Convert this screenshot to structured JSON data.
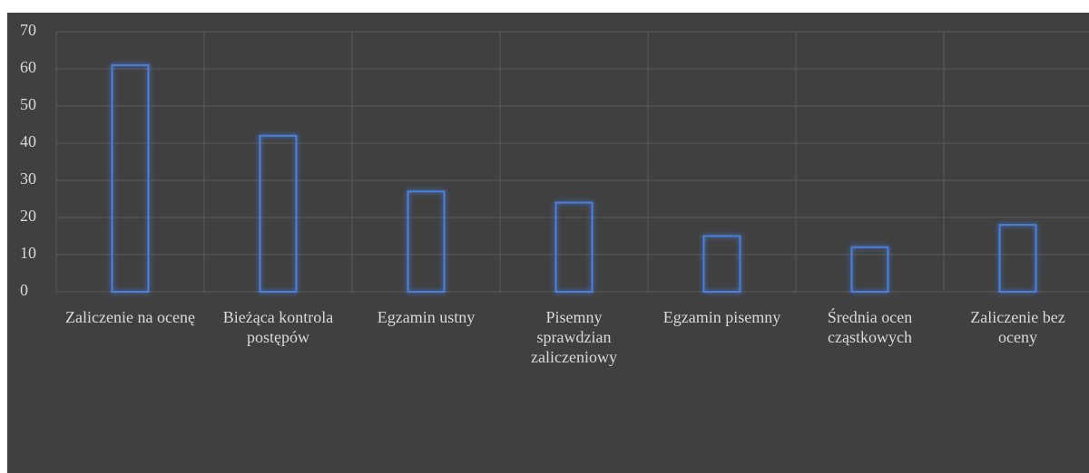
{
  "chart_data": {
    "type": "bar",
    "categories": [
      "Zaliczenie na ocenę",
      "Bieżąca kontrola postępów",
      "Egzamin ustny",
      "Pisemny sprawdzian zaliczeniowy",
      "Egzamin pisemny",
      "Średnia ocen cząstkowych",
      "Zaliczenie bez oceny"
    ],
    "values": [
      61,
      42,
      27,
      24,
      15,
      12,
      18
    ],
    "color": "#4a7fe0",
    "ylim": [
      0,
      70
    ],
    "yticks": [
      0,
      10,
      20,
      30,
      40,
      50,
      60,
      70
    ],
    "grid": true
  }
}
